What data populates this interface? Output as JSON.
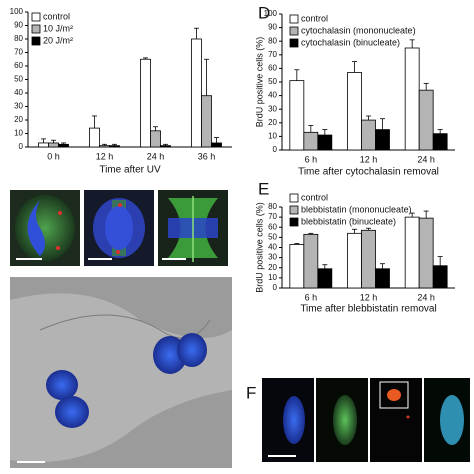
{
  "chart_data": [
    {
      "type": "bar",
      "label": null,
      "xlabel": "Time after UV",
      "categories": [
        "0 h",
        "12 h",
        "24 h",
        "36 h"
      ],
      "ylim": [
        0,
        100
      ],
      "yticks": [
        0,
        10,
        20,
        30,
        40,
        50,
        60,
        70,
        80,
        90,
        100
      ],
      "series": [
        {
          "name": "control",
          "color": "#ffffff",
          "values": [
            3,
            14,
            65,
            80
          ],
          "errors": [
            3,
            9,
            1,
            8
          ]
        },
        {
          "name": "10 J/m²",
          "color": "#b4b4b4",
          "values": [
            3,
            1,
            12,
            38
          ],
          "errors": [
            2,
            1,
            3,
            27
          ]
        },
        {
          "name": "20 J/m²",
          "color": "#000000",
          "values": [
            2,
            1,
            1,
            3
          ],
          "errors": [
            1,
            1,
            1,
            4
          ]
        }
      ]
    },
    {
      "type": "bar",
      "label": "D",
      "ylabel": "BrdU positive cells (%)",
      "xlabel": "Time after cytochalasin removal",
      "categories": [
        "6 h",
        "12 h",
        "24 h"
      ],
      "ylim": [
        0,
        100
      ],
      "yticks": [
        0,
        10,
        20,
        30,
        40,
        50,
        60,
        70,
        80,
        90,
        100
      ],
      "series": [
        {
          "name": "control",
          "color": "#ffffff",
          "values": [
            51,
            57,
            75
          ],
          "errors": [
            8,
            8,
            6
          ]
        },
        {
          "name": "cytochalasin (mononucleate)",
          "color": "#b4b4b4",
          "values": [
            13,
            22,
            44
          ],
          "errors": [
            5,
            3,
            5
          ]
        },
        {
          "name": "cytochalasin (binucleate)",
          "color": "#000000",
          "values": [
            11,
            15,
            12
          ],
          "errors": [
            4,
            8,
            3
          ]
        }
      ]
    },
    {
      "type": "bar",
      "label": "E",
      "ylabel": "BrdU positive cells (%)",
      "xlabel": "Time after blebbistatin removal",
      "categories": [
        "6 h",
        "12 h",
        "24 h"
      ],
      "ylim": [
        0,
        80
      ],
      "yticks": [
        0,
        10,
        20,
        30,
        40,
        50,
        60,
        70,
        80
      ],
      "series": [
        {
          "name": "control",
          "color": "#ffffff",
          "values": [
            43,
            54,
            70
          ],
          "errors": [
            1,
            4,
            4
          ]
        },
        {
          "name": "blebbistatin (mononucleate)",
          "color": "#b4b4b4",
          "values": [
            53,
            57,
            69
          ],
          "errors": [
            1,
            2,
            7
          ]
        },
        {
          "name": "blebbistatin (binucleate)",
          "color": "#000000",
          "values": [
            19,
            19,
            22
          ],
          "errors": [
            4,
            5,
            9
          ]
        }
      ]
    }
  ],
  "panel_f": {
    "label": "F"
  }
}
